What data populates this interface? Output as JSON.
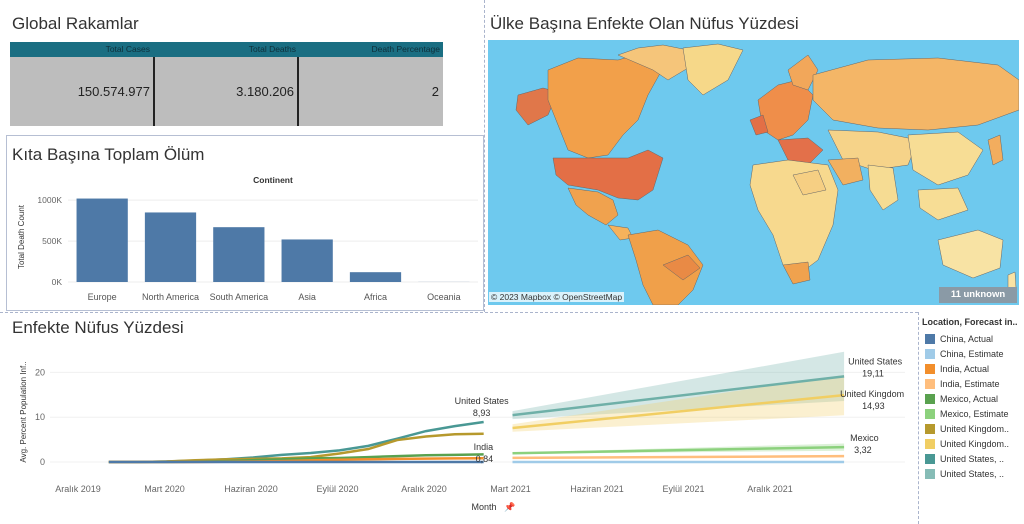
{
  "global": {
    "title": "Global Rakamlar",
    "headers": [
      "Total Cases",
      "Total Deaths",
      "Death Percentage"
    ],
    "values": [
      "150.574.977",
      "3.180.206",
      "2"
    ]
  },
  "continent_panel": {
    "title": "Kıta Başına Toplam Ölüm"
  },
  "map_panel": {
    "title": "Ülke Başına Enfekte Olan Nüfus Yüzdesi",
    "attribution": "© 2023 Mapbox © OpenStreetMap",
    "unknown_badge": "11 unknown"
  },
  "infection_panel": {
    "title": "Enfekte Nüfus Yüzdesi"
  },
  "legend": {
    "title": "Location, Forecast in..",
    "items": [
      {
        "label": "China, Actual",
        "color": "#4e79a7"
      },
      {
        "label": "China, Estimate",
        "color": "#a0cbe8"
      },
      {
        "label": "India, Actual",
        "color": "#f28e2b"
      },
      {
        "label": "India, Estimate",
        "color": "#ffbe7d"
      },
      {
        "label": "Mexico, Actual",
        "color": "#59a14f"
      },
      {
        "label": "Mexico, Estimate",
        "color": "#8cd17d"
      },
      {
        "label": "United Kingdom..",
        "color": "#b6992d"
      },
      {
        "label": "United Kingdom..",
        "color": "#f1ce63"
      },
      {
        "label": "United States, ..",
        "color": "#499894"
      },
      {
        "label": "United States, ..",
        "color": "#86bcb6"
      }
    ]
  },
  "chart_data": [
    {
      "type": "bar",
      "title": "Continent",
      "ylabel": "Total Death Count",
      "categories": [
        "Europe",
        "North America",
        "South America",
        "Asia",
        "Africa",
        "Oceania"
      ],
      "values": [
        1020000,
        850000,
        670000,
        520000,
        120000,
        1000
      ],
      "yticks": [
        "0K",
        "500K",
        "1000K"
      ],
      "ylim": [
        0,
        1100000
      ],
      "color": "#4e79a7"
    },
    {
      "type": "line",
      "xlabel": "Month",
      "ylabel": "Avg. Percent Population Inf..",
      "x_ticks": [
        "Aralık 2019",
        "Mart 2020",
        "Haziran 2020",
        "Eylül 2020",
        "Aralık 2020",
        "Mart 2021",
        "Haziran 2021",
        "Eylül 2021",
        "Aralık 2021"
      ],
      "y_ticks": [
        "0",
        "10",
        "20"
      ],
      "ylim": [
        0,
        25
      ],
      "series": [
        {
          "name": "United States",
          "color": "#499894",
          "forecast_color": "#6fb0a8",
          "values": [
            0,
            0,
            0.1,
            0.3,
            0.6,
            1.0,
            1.6,
            2.0,
            2.6,
            3.6,
            5.2,
            6.9,
            8.0,
            8.93
          ],
          "forecast_end": 19.11,
          "band": [
            3.0,
            5.5
          ],
          "label": "United States",
          "value_label": "8,93",
          "forecast_label": "United States",
          "forecast_value_label": "19,11"
        },
        {
          "name": "United Kingdom",
          "color": "#b6992d",
          "forecast_color": "#f1ce63",
          "values": [
            0,
            0,
            0.1,
            0.4,
            0.6,
            0.7,
            0.8,
            1.1,
            1.9,
            2.9,
            4.9,
            5.7,
            6.2,
            6.3
          ],
          "forecast_end": 14.93,
          "band": [
            2.8,
            4.5
          ],
          "forecast_label": "United Kingdom",
          "forecast_value_label": "14,93"
        },
        {
          "name": "Mexico",
          "color": "#59a14f",
          "forecast_color": "#8cd17d",
          "values": [
            0,
            0,
            0,
            0.05,
            0.2,
            0.4,
            0.6,
            0.8,
            0.9,
            1.1,
            1.3,
            1.5,
            1.6,
            1.7
          ],
          "forecast_end": 3.32,
          "band": [
            0.5,
            0.8
          ],
          "forecast_label": "Mexico",
          "forecast_value_label": "3,32"
        },
        {
          "name": "India",
          "color": "#f28e2b",
          "forecast_color": "#ffbe7d",
          "values": [
            0,
            0,
            0,
            0,
            0.05,
            0.1,
            0.2,
            0.35,
            0.5,
            0.6,
            0.7,
            0.75,
            0.8,
            0.84
          ],
          "forecast_end": 1.3,
          "band": [
            0.2,
            0.3
          ],
          "label": "India",
          "value_label": "0,84"
        },
        {
          "name": "China",
          "color": "#4e79a7",
          "forecast_color": "#a0cbe8",
          "values": [
            0,
            0,
            0,
            0,
            0,
            0,
            0,
            0,
            0,
            0,
            0,
            0,
            0,
            0.01
          ],
          "forecast_end": 0.01,
          "band": [
            0,
            0
          ]
        }
      ]
    }
  ]
}
